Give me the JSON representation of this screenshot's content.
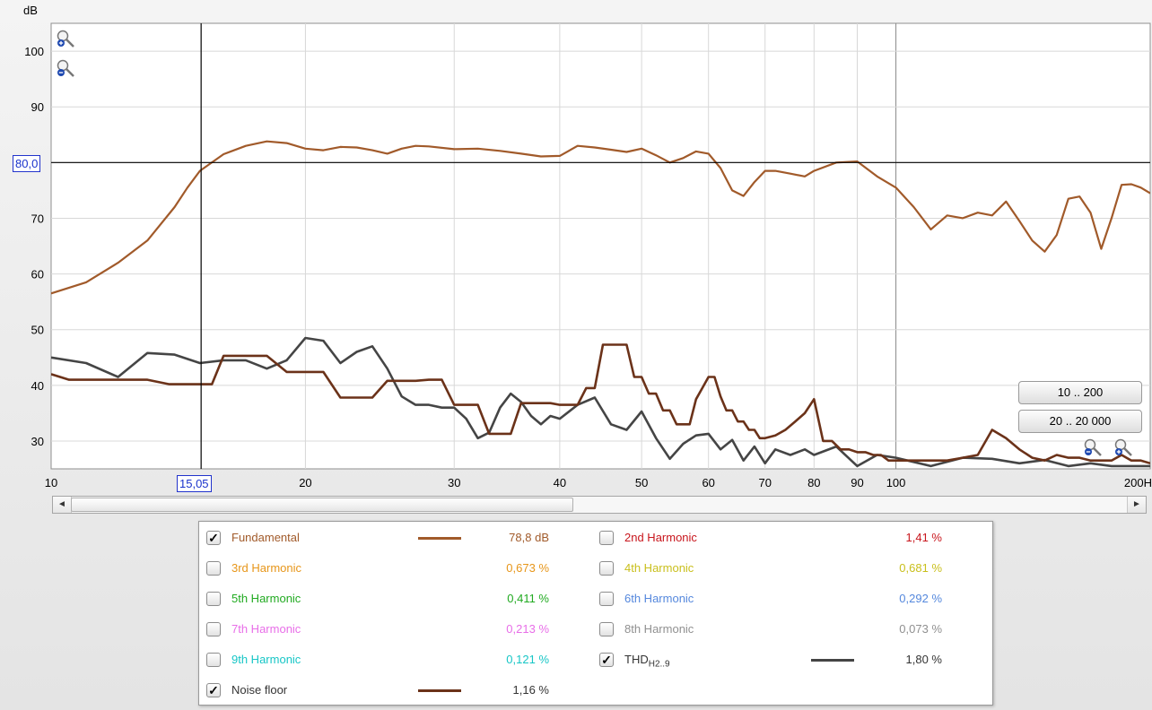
{
  "chart_data": {
    "type": "line",
    "ylabel": "dB",
    "x_scale": "log",
    "xlim": [
      10,
      200
    ],
    "ylim": [
      25,
      105
    ],
    "x_ticks": [
      10,
      20,
      30,
      40,
      50,
      60,
      70,
      80,
      90,
      100,
      200
    ],
    "x_tick_labels": [
      "10",
      "20",
      "30",
      "40",
      "50",
      "60",
      "70",
      "80",
      "90",
      "100",
      "200H"
    ],
    "y_ticks": [
      30,
      40,
      50,
      60,
      70,
      90,
      100
    ],
    "y_tick_labels": [
      "30",
      "40",
      "50",
      "60",
      "70",
      "90",
      "100"
    ],
    "grid": true,
    "cursor": {
      "x": 15.05,
      "y": 80.0,
      "x_label": "15,05",
      "y_label": "80,0"
    },
    "series": [
      {
        "name": "Fundamental",
        "color": "#a15a2a",
        "x": [
          10,
          11,
          12,
          13,
          14,
          14.5,
          15,
          16,
          17,
          18,
          19,
          20,
          21,
          22,
          23,
          24,
          25,
          26,
          27,
          28,
          30,
          32,
          34,
          36,
          38,
          40,
          42,
          44,
          46,
          48,
          50,
          52,
          54,
          56,
          58,
          60,
          62,
          64,
          66,
          68,
          70,
          72,
          75,
          78,
          80,
          85,
          90,
          95,
          100,
          105,
          110,
          115,
          120,
          125,
          130,
          135,
          140,
          145,
          150,
          155,
          160,
          165,
          170,
          175,
          180,
          185,
          190,
          195,
          200
        ],
        "y": [
          56.5,
          58.5,
          62,
          66,
          72,
          75.5,
          78.5,
          81.5,
          83,
          83.8,
          83.5,
          82.5,
          82.2,
          82.8,
          82.7,
          82.2,
          81.6,
          82.5,
          83,
          82.9,
          82.4,
          82.5,
          82.1,
          81.6,
          81.1,
          81.2,
          83,
          82.7,
          82.3,
          81.9,
          82.5,
          81.3,
          80,
          80.8,
          82,
          81.6,
          79,
          75,
          74,
          76.5,
          78.5,
          78.5,
          78,
          77.5,
          78.5,
          80,
          80.2,
          77.5,
          75.5,
          72,
          68,
          70.5,
          70,
          71,
          70.5,
          73,
          69.5,
          66,
          64,
          67,
          73.5,
          73.9,
          71,
          64.5,
          70,
          76,
          76.1,
          75.5,
          74.5
        ]
      },
      {
        "name": "THD H2..9",
        "color": "#454545",
        "x": [
          10,
          11,
          12,
          13,
          14,
          15,
          16,
          17,
          18,
          19,
          20,
          21,
          22,
          23,
          24,
          25,
          26,
          27,
          28,
          29,
          30,
          31,
          32,
          33,
          34,
          35,
          36,
          37,
          38,
          39,
          40,
          42,
          44,
          46,
          48,
          50,
          52,
          54,
          56,
          58,
          60,
          62,
          64,
          66,
          68,
          70,
          72,
          75,
          78,
          80,
          85,
          90,
          95,
          100,
          110,
          120,
          130,
          140,
          150,
          160,
          170,
          180,
          190,
          200
        ],
        "y": [
          45,
          44,
          41.5,
          45.8,
          45.5,
          44,
          44.5,
          44.5,
          43,
          44.5,
          48.5,
          48,
          44,
          46,
          47,
          43,
          38,
          36.5,
          36.5,
          36,
          36,
          34,
          30.5,
          31.5,
          36,
          38.5,
          37,
          34.5,
          33,
          34.5,
          34,
          36.5,
          37.8,
          33,
          32,
          35.3,
          30.5,
          26.8,
          29.5,
          31,
          31.3,
          28.5,
          30.2,
          26.5,
          29,
          26,
          28.5,
          27.5,
          28.5,
          27.5,
          29,
          25.5,
          27.5,
          27,
          25.5,
          27,
          26.8,
          26,
          26.6,
          25.5,
          26,
          25.5,
          25.5,
          25.5
        ]
      },
      {
        "name": "Noise floor",
        "color": "#6b3219",
        "x": [
          10,
          10.5,
          11,
          12,
          13,
          13.8,
          14.5,
          15,
          15.5,
          16,
          17,
          18,
          19,
          20,
          21,
          22,
          23,
          24,
          25,
          26,
          27,
          28,
          29,
          30,
          31,
          32,
          33,
          34,
          35,
          36,
          37,
          38,
          39,
          40,
          41,
          42,
          43,
          44,
          45,
          46,
          47,
          48,
          49,
          50,
          51,
          52,
          53,
          54,
          55,
          56,
          57,
          58,
          59,
          60,
          61,
          62,
          63,
          64,
          65,
          66,
          67,
          68,
          69,
          70,
          72,
          74,
          76,
          78,
          80,
          82,
          84,
          86,
          88,
          90,
          92,
          94,
          96,
          98,
          100,
          105,
          110,
          115,
          120,
          125,
          130,
          135,
          140,
          145,
          150,
          155,
          160,
          165,
          170,
          175,
          180,
          185,
          190,
          195,
          200
        ],
        "y": [
          42,
          41,
          41,
          41,
          41,
          40.2,
          40.2,
          40.2,
          40.2,
          45.3,
          45.3,
          45.3,
          42.4,
          42.4,
          42.4,
          37.8,
          37.8,
          37.8,
          40.8,
          40.8,
          40.8,
          41,
          41,
          36.5,
          36.5,
          36.5,
          31.3,
          31.3,
          31.3,
          36.8,
          36.8,
          36.8,
          36.8,
          36.5,
          36.5,
          36.5,
          39.5,
          39.5,
          47.3,
          47.3,
          47.3,
          47.3,
          41.5,
          41.5,
          38.5,
          38.5,
          35.5,
          35.5,
          33,
          33,
          33,
          37.5,
          39.5,
          41.5,
          41.5,
          38,
          35.5,
          35.5,
          33.5,
          33.5,
          32,
          32,
          30.5,
          30.5,
          31,
          32,
          33.5,
          35,
          37.5,
          30,
          30,
          28.5,
          28.5,
          28,
          28,
          27.5,
          27.5,
          26.5,
          26.5,
          26.5,
          26.5,
          26.5,
          27,
          27.5,
          32,
          30.5,
          28.5,
          27,
          26.5,
          27.5,
          27,
          27,
          26.5,
          26.5,
          26.5,
          27.5,
          26.5,
          26.5,
          26
        ]
      }
    ]
  },
  "range_buttons": {
    "short": "10 .. 200",
    "full": "20 .. 20 000"
  },
  "legend": {
    "fundamental": {
      "label": "Fundamental",
      "value": "78,8 dB",
      "checked": true,
      "color": "#a15a2a"
    },
    "h2": {
      "label": "2nd Harmonic",
      "value": "1,41 %",
      "color": "#c8161d"
    },
    "h3": {
      "label": "3rd Harmonic",
      "value": "0,673 %",
      "color": "#e7961a"
    },
    "h4": {
      "label": "4th Harmonic",
      "value": "0,681 %",
      "color": "#c9bf1c"
    },
    "h5": {
      "label": "5th Harmonic",
      "value": "0,411 %",
      "color": "#21aa21"
    },
    "h6": {
      "label": "6th Harmonic",
      "value": "0,292 %",
      "color": "#5588dd"
    },
    "h7": {
      "label": "7th Harmonic",
      "value": "0,213 %",
      "color": "#e86ee8"
    },
    "h8": {
      "label": "8th Harmonic",
      "value": "0,073 %",
      "color": "#909090"
    },
    "h9": {
      "label": "9th Harmonic",
      "value": "0,121 %",
      "color": "#17c6c6"
    },
    "thd": {
      "label": "THD",
      "label_sub": "H2..9",
      "value": "1,80 %",
      "checked": true,
      "color": "#454545"
    },
    "noise": {
      "label": "Noise floor",
      "value": "1,16 %",
      "checked": true,
      "color": "#6b3219"
    }
  },
  "icons": {
    "zoom_in": "zoom-in-icon",
    "zoom_out": "zoom-out-icon",
    "scroll_left": "◄",
    "scroll_right": "►",
    "check_mark": "✓"
  }
}
